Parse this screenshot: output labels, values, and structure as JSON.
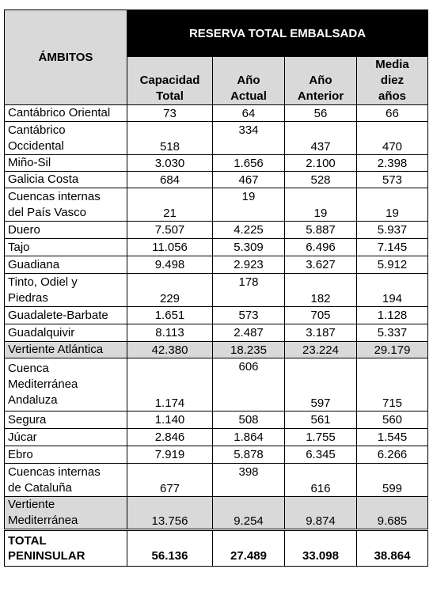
{
  "table": {
    "header": {
      "ambitos": "ÁMBITOS",
      "group": "RESERVA TOTAL EMBALSADA",
      "columns": [
        [
          "Capacidad",
          "Total"
        ],
        [
          "Año",
          "Actual"
        ],
        [
          "Año",
          "Anterior"
        ],
        [
          "Media",
          "diez",
          "años"
        ]
      ]
    },
    "rows": [
      {
        "name": [
          "Cantábrico Oriental"
        ],
        "values": [
          "73",
          "64",
          "56",
          "66"
        ],
        "kind": "normal"
      },
      {
        "name": [
          "Cantábrico",
          "Occidental"
        ],
        "values": [
          "518",
          "334",
          "437",
          "470"
        ],
        "kind": "tall"
      },
      {
        "name": [
          "Miño-Sil"
        ],
        "values": [
          "3.030",
          "1.656",
          "2.100",
          "2.398"
        ],
        "kind": "normal"
      },
      {
        "name": [
          "Galicia Costa"
        ],
        "values": [
          "684",
          "467",
          "528",
          "573"
        ],
        "kind": "normal"
      },
      {
        "name": [
          "Cuencas internas",
          "del País Vasco"
        ],
        "values": [
          "21",
          "19",
          "19",
          "19"
        ],
        "kind": "tall"
      },
      {
        "name": [
          "Duero"
        ],
        "values": [
          "7.507",
          "4.225",
          "5.887",
          "5.937"
        ],
        "kind": "normal"
      },
      {
        "name": [
          "Tajo"
        ],
        "values": [
          "11.056",
          "5.309",
          "6.496",
          "7.145"
        ],
        "kind": "normal"
      },
      {
        "name": [
          "Guadiana"
        ],
        "values": [
          "9.498",
          "2.923",
          "3.627",
          "5.912"
        ],
        "kind": "normal"
      },
      {
        "name": [
          "Tinto, Odiel y",
          "Piedras"
        ],
        "values": [
          "229",
          "178",
          "182",
          "194"
        ],
        "kind": "tall"
      },
      {
        "name": [
          "Guadalete-Barbate"
        ],
        "values": [
          "1.651",
          "573",
          "705",
          "1.128"
        ],
        "kind": "normal"
      },
      {
        "name": [
          "Guadalquivir"
        ],
        "values": [
          "8.113",
          "2.487",
          "3.187",
          "5.337"
        ],
        "kind": "normal"
      },
      {
        "name": [
          "Vertiente Atlántica"
        ],
        "values": [
          "42.380",
          "18.235",
          "23.224",
          "29.179"
        ],
        "kind": "subtotal"
      },
      {
        "name": [
          "Cuenca",
          "Mediterránea",
          "Andaluza"
        ],
        "values": [
          "1.174",
          "606",
          "597",
          "715"
        ],
        "kind": "tall"
      },
      {
        "name": [
          "Segura"
        ],
        "values": [
          "1.140",
          "508",
          "561",
          "560"
        ],
        "kind": "normal"
      },
      {
        "name": [
          "Júcar"
        ],
        "values": [
          "2.846",
          "1.864",
          "1.755",
          "1.545"
        ],
        "kind": "normal"
      },
      {
        "name": [
          "Ebro"
        ],
        "values": [
          "7.919",
          "5.878",
          "6.345",
          "6.266"
        ],
        "kind": "normal"
      },
      {
        "name": [
          "Cuencas internas",
          "de Cataluña"
        ],
        "values": [
          "677",
          "398",
          "616",
          "599"
        ],
        "kind": "tall"
      },
      {
        "name": [
          "Vertiente",
          "Mediterránea"
        ],
        "values": [
          "13.756",
          "9.254",
          "9.874",
          "9.685"
        ],
        "kind": "subtotal"
      },
      {
        "name": [
          "TOTAL",
          "PENINSULAR"
        ],
        "values": [
          "56.136",
          "27.489",
          "33.098",
          "38.864"
        ],
        "kind": "total"
      }
    ]
  }
}
